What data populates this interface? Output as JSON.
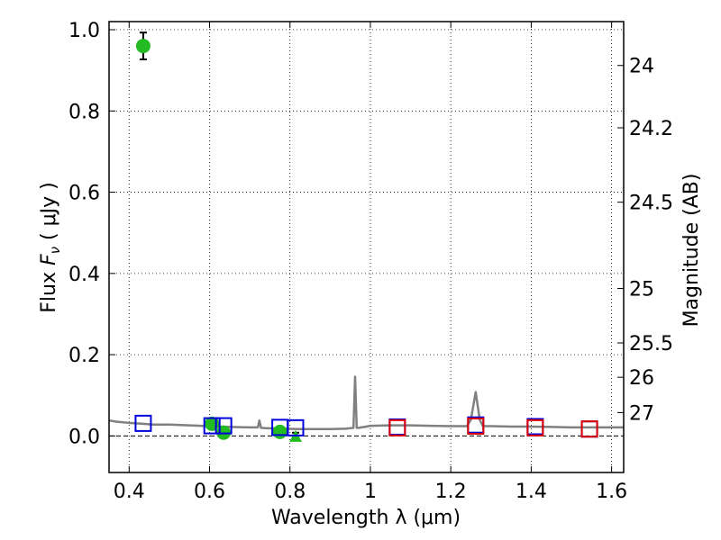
{
  "chart_data": {
    "type": "scatter",
    "xlabel": "Wavelength  λ (μm)",
    "ylabel": "Flux  F_ν  ( μJy )",
    "ylabel_parts": {
      "lead": "Flux  ",
      "f": "F",
      "nu": "ν",
      "tail": "  ( μJy )"
    },
    "y2label": "Magnitude (AB)",
    "xlim": [
      0.35,
      1.63
    ],
    "ylim": [
      -0.09,
      1.02
    ],
    "grid": true,
    "grid_style": "dotted",
    "x_ticks": [
      {
        "value": 0.4,
        "label": "0.4"
      },
      {
        "value": 0.6,
        "label": "0.6"
      },
      {
        "value": 0.8,
        "label": "0.8"
      },
      {
        "value": 1.0,
        "label": "1"
      },
      {
        "value": 1.2,
        "label": "1.2"
      },
      {
        "value": 1.4,
        "label": "1.4"
      },
      {
        "value": 1.6,
        "label": "1.6"
      }
    ],
    "y_ticks": [
      {
        "value": 0.0,
        "label": "0.0"
      },
      {
        "value": 0.2,
        "label": "0.2"
      },
      {
        "value": 0.4,
        "label": "0.4"
      },
      {
        "value": 0.6,
        "label": "0.6"
      },
      {
        "value": 0.8,
        "label": "0.8"
      },
      {
        "value": 1.0,
        "label": "1.0"
      }
    ],
    "y2_ticks": [
      {
        "value": 24.0,
        "label": "24"
      },
      {
        "value": 24.2,
        "label": "24.2"
      },
      {
        "value": 24.5,
        "label": "24.5"
      },
      {
        "value": 25.0,
        "label": "25"
      },
      {
        "value": 25.5,
        "label": "25.5"
      },
      {
        "value": 26.0,
        "label": "26"
      },
      {
        "value": 27.0,
        "label": "27"
      }
    ],
    "model_spectrum": {
      "color": "#808080",
      "x": [
        0.35,
        0.37,
        0.4,
        0.43,
        0.46,
        0.5,
        0.55,
        0.6,
        0.65,
        0.7,
        0.72,
        0.724,
        0.728,
        0.74,
        0.78,
        0.82,
        0.86,
        0.9,
        0.94,
        0.958,
        0.962,
        0.966,
        0.97,
        0.985,
        1.0,
        1.05,
        1.1,
        1.15,
        1.2,
        1.24,
        1.25,
        1.262,
        1.272,
        1.28,
        1.3,
        1.35,
        1.4,
        1.45,
        1.5,
        1.55,
        1.6,
        1.63
      ],
      "y": [
        0.038,
        0.035,
        0.032,
        0.03,
        0.028,
        0.028,
        0.026,
        0.024,
        0.022,
        0.021,
        0.021,
        0.038,
        0.02,
        0.019,
        0.018,
        0.017,
        0.017,
        0.017,
        0.018,
        0.02,
        0.146,
        0.02,
        0.02,
        0.022,
        0.025,
        0.026,
        0.026,
        0.025,
        0.024,
        0.024,
        0.04,
        0.108,
        0.04,
        0.024,
        0.024,
        0.023,
        0.023,
        0.022,
        0.021,
        0.021,
        0.021,
        0.021
      ]
    },
    "series": [
      {
        "marker": "circle",
        "color": "#22bb22",
        "x": [
          0.435,
          0.606,
          0.635,
          0.775
        ],
        "y": [
          0.96,
          0.03,
          0.008,
          0.01
        ],
        "err": [
          0.033,
          0.01,
          0.009,
          0.01
        ]
      },
      {
        "marker": "triangle",
        "color": "#22bb22",
        "x": [
          0.814
        ],
        "y": [
          0.001
        ],
        "err": [
          0.007
        ]
      },
      {
        "marker": "open-square",
        "color": "#0000dd",
        "x": [
          0.435,
          0.606,
          0.635,
          0.775,
          0.814,
          1.067,
          1.262,
          1.41,
          1.545
        ],
        "y": [
          0.031,
          0.025,
          0.025,
          0.021,
          0.02,
          0.022,
          0.027,
          0.023,
          0.017
        ]
      },
      {
        "marker": "open-square",
        "color": "#dd0000",
        "x": [
          1.067,
          1.262,
          1.41,
          1.545
        ],
        "y": [
          0.02,
          0.024,
          0.02,
          0.017
        ]
      }
    ]
  }
}
